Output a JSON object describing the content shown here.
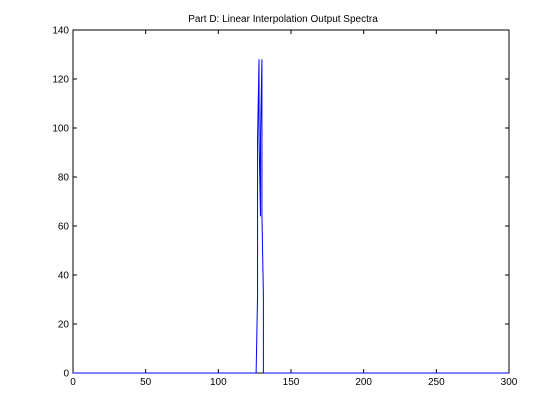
{
  "chart_data": {
    "type": "line",
    "title": "Part D: Linear Interpolation Output Spectra",
    "xlabel": "",
    "ylabel": "",
    "xlim": [
      0,
      300
    ],
    "ylim": [
      0,
      140
    ],
    "xticks": [
      0,
      50,
      100,
      150,
      200,
      250,
      300
    ],
    "yticks": [
      0,
      20,
      40,
      60,
      80,
      100,
      120,
      140
    ],
    "grid": false,
    "series": [
      {
        "color": "#0000ff",
        "x": [
          0,
          126,
          127,
          127,
          128,
          128,
          129,
          129,
          130,
          130,
          131,
          131,
          132,
          300
        ],
        "y": [
          0,
          0,
          32,
          96,
          128,
          96,
          64,
          96,
          128,
          64,
          32,
          0,
          0,
          0
        ]
      }
    ]
  }
}
